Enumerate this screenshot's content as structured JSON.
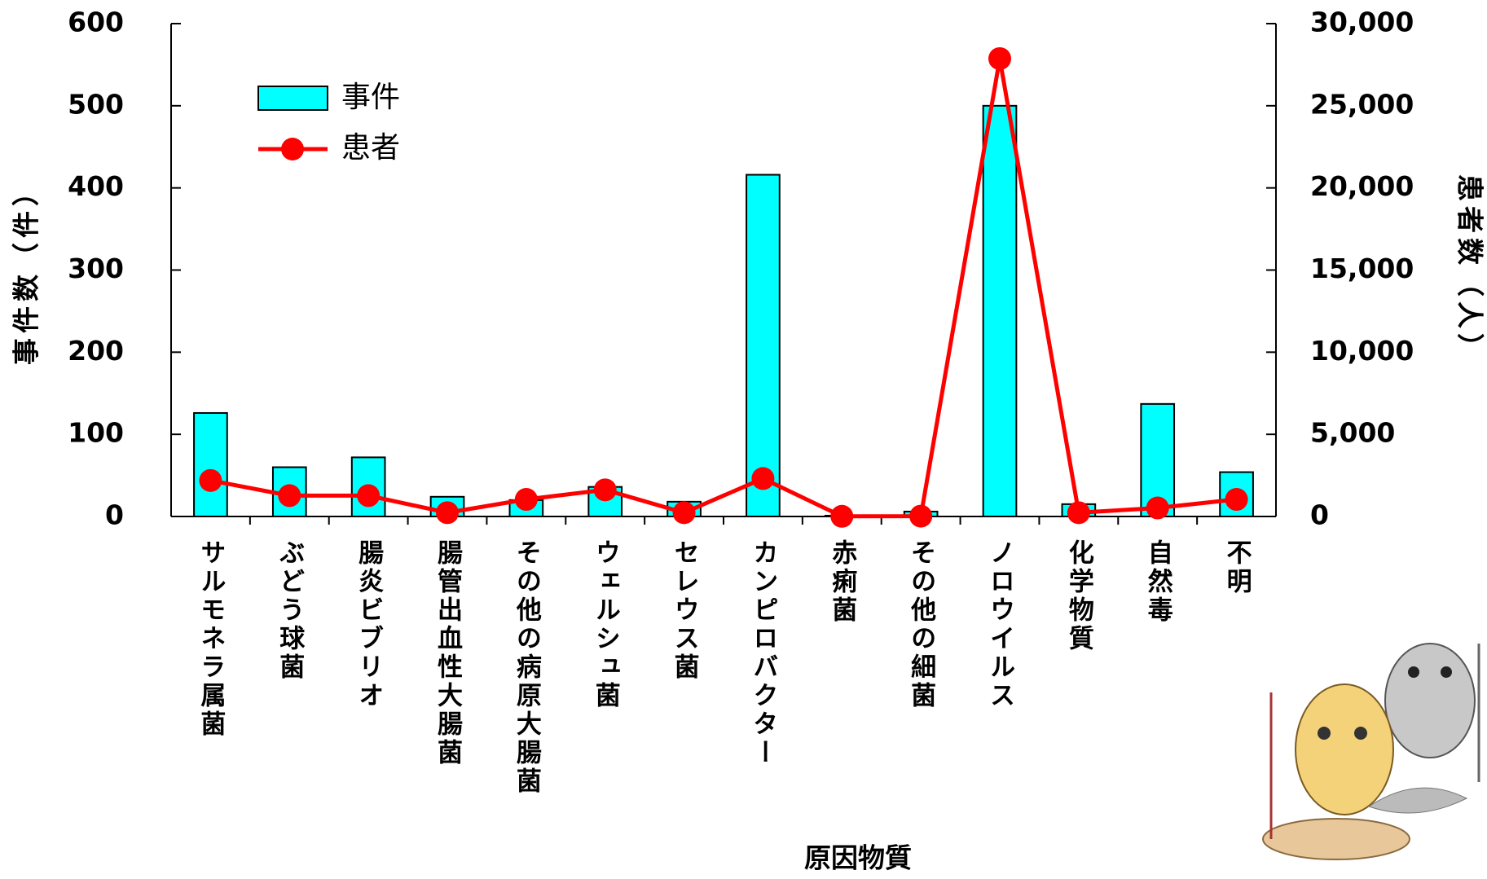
{
  "chart_data": {
    "type": "bar",
    "x_label": "原因物質",
    "y_label": "事件数（件）",
    "y2_label": "患者数（人）",
    "categories": [
      "サルモネラ属菌",
      "ぶどう球菌",
      "腸炎ビブリオ",
      "腸管出血性大腸菌",
      "その他の病原大腸菌",
      "ウェルシュ菌",
      "セレウス菌",
      "カンピロバクター",
      "赤痢菌",
      "その他の細菌",
      "ノロウイルス",
      "化学物質",
      "自然毒",
      "不明"
    ],
    "series": [
      {
        "name": "事件",
        "type": "bar",
        "color": "#00ffff",
        "values": [
          126,
          60,
          72,
          24,
          20,
          36,
          18,
          416,
          1,
          6,
          500,
          15,
          137,
          54
        ]
      },
      {
        "name": "患者",
        "type": "line",
        "axis": "y2",
        "color": "#ff0000",
        "values": [
          2190,
          1270,
          1270,
          230,
          1040,
          1620,
          230,
          2310,
          10,
          20,
          27870,
          230,
          520,
          1040
        ]
      }
    ],
    "ylim": [
      0,
      600
    ],
    "yticks": [
      0,
      100,
      200,
      300,
      400,
      500,
      600
    ],
    "y2lim": [
      0,
      30000
    ],
    "y2ticks": [
      0,
      {
        "value": 5000,
        "label": "5,000"
      },
      {
        "value": 10000,
        "label": "10,000"
      },
      {
        "value": 15000,
        "label": "15,000"
      },
      {
        "value": 20000,
        "label": "20,000"
      },
      {
        "value": 25000,
        "label": "25,000"
      },
      {
        "value": 30000,
        "label": "30,000"
      }
    ],
    "legend": "top-left"
  }
}
